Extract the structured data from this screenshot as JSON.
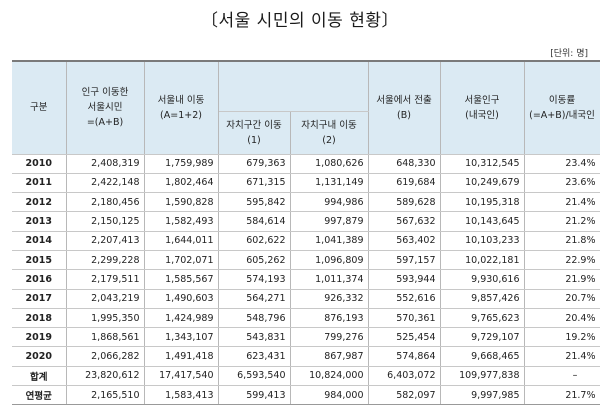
{
  "title": "〔서울 시민의 이동 현황〕",
  "unit": "[단위: 명]",
  "headers": {
    "category": "구분",
    "total": [
      "인구 이동한",
      "서울시민",
      "=(A+B)"
    ],
    "within": [
      "서울내 이동",
      "(A=1+2)"
    ],
    "inter": [
      "자치구간 이동",
      "(1)"
    ],
    "intra": [
      "자치구내 이동",
      "(2)"
    ],
    "out": [
      "서울에서 전출",
      "(B)"
    ],
    "pop": [
      "서울인구",
      "(내국인)"
    ],
    "rate": [
      "이동률",
      "(=A+B)/내국인"
    ]
  },
  "rows": [
    {
      "year": "2010",
      "total": "2,408,319",
      "within": "1,759,989",
      "inter": "679,363",
      "intra": "1,080,626",
      "out": "648,330",
      "pop": "10,312,545",
      "rate": "23.4%"
    },
    {
      "year": "2011",
      "total": "2,422,148",
      "within": "1,802,464",
      "inter": "671,315",
      "intra": "1,131,149",
      "out": "619,684",
      "pop": "10,249,679",
      "rate": "23.6%"
    },
    {
      "year": "2012",
      "total": "2,180,456",
      "within": "1,590,828",
      "inter": "595,842",
      "intra": "994,986",
      "out": "589,628",
      "pop": "10,195,318",
      "rate": "21.4%"
    },
    {
      "year": "2013",
      "total": "2,150,125",
      "within": "1,582,493",
      "inter": "584,614",
      "intra": "997,879",
      "out": "567,632",
      "pop": "10,143,645",
      "rate": "21.2%"
    },
    {
      "year": "2014",
      "total": "2,207,413",
      "within": "1,644,011",
      "inter": "602,622",
      "intra": "1,041,389",
      "out": "563,402",
      "pop": "10,103,233",
      "rate": "21.8%"
    },
    {
      "year": "2015",
      "total": "2,299,228",
      "within": "1,702,071",
      "inter": "605,262",
      "intra": "1,096,809",
      "out": "597,157",
      "pop": "10,022,181",
      "rate": "22.9%"
    },
    {
      "year": "2016",
      "total": "2,179,511",
      "within": "1,585,567",
      "inter": "574,193",
      "intra": "1,011,374",
      "out": "593,944",
      "pop": "9,930,616",
      "rate": "21.9%"
    },
    {
      "year": "2017",
      "total": "2,043,219",
      "within": "1,490,603",
      "inter": "564,271",
      "intra": "926,332",
      "out": "552,616",
      "pop": "9,857,426",
      "rate": "20.7%"
    },
    {
      "year": "2018",
      "total": "1,995,350",
      "within": "1,424,989",
      "inter": "548,796",
      "intra": "876,193",
      "out": "570,361",
      "pop": "9,765,623",
      "rate": "20.4%"
    },
    {
      "year": "2019",
      "total": "1,868,561",
      "within": "1,343,107",
      "inter": "543,831",
      "intra": "799,276",
      "out": "525,454",
      "pop": "9,729,107",
      "rate": "19.2%"
    },
    {
      "year": "2020",
      "total": "2,066,282",
      "within": "1,491,418",
      "inter": "623,431",
      "intra": "867,987",
      "out": "574,864",
      "pop": "9,668,465",
      "rate": "21.4%"
    }
  ],
  "sum": {
    "year": "합계",
    "total": "23,820,612",
    "within": "17,417,540",
    "inter": "6,593,540",
    "intra": "10,824,000",
    "out": "6,403,072",
    "pop": "109,977,838",
    "rate": "–"
  },
  "avg": {
    "year": "연평균",
    "total": "2,165,510",
    "within": "1,583,413",
    "inter": "599,413",
    "intra": "984,000",
    "out": "582,097",
    "pop": "9,997,985",
    "rate": "21.7%"
  }
}
